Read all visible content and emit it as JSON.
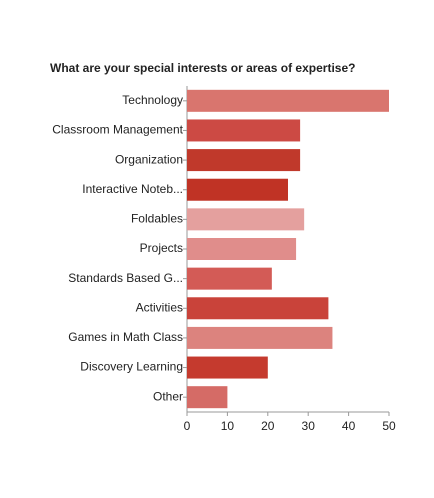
{
  "chart_data": {
    "type": "hbar",
    "title": "What are your special interests or areas of expertise?",
    "categories": [
      "Technology",
      "Classroom Management",
      "Organization",
      "Interactive Noteb...",
      "Foldables",
      "Projects",
      "Standards Based G...",
      "Activities",
      "Games in Math Class",
      "Discovery Learning",
      "Other"
    ],
    "values": [
      50,
      28,
      28,
      25,
      29,
      27,
      21,
      35,
      36,
      20,
      10
    ],
    "colors": [
      "#d9756e",
      "#cc4a44",
      "#c0392b",
      "#c03325",
      "#e4a09e",
      "#e08d8b",
      "#d35b56",
      "#c9433a",
      "#dc837e",
      "#c53a2e",
      "#d56b66"
    ],
    "xlim": [
      0,
      50
    ],
    "xticks": [
      0,
      10,
      20,
      30,
      40,
      50
    ]
  }
}
